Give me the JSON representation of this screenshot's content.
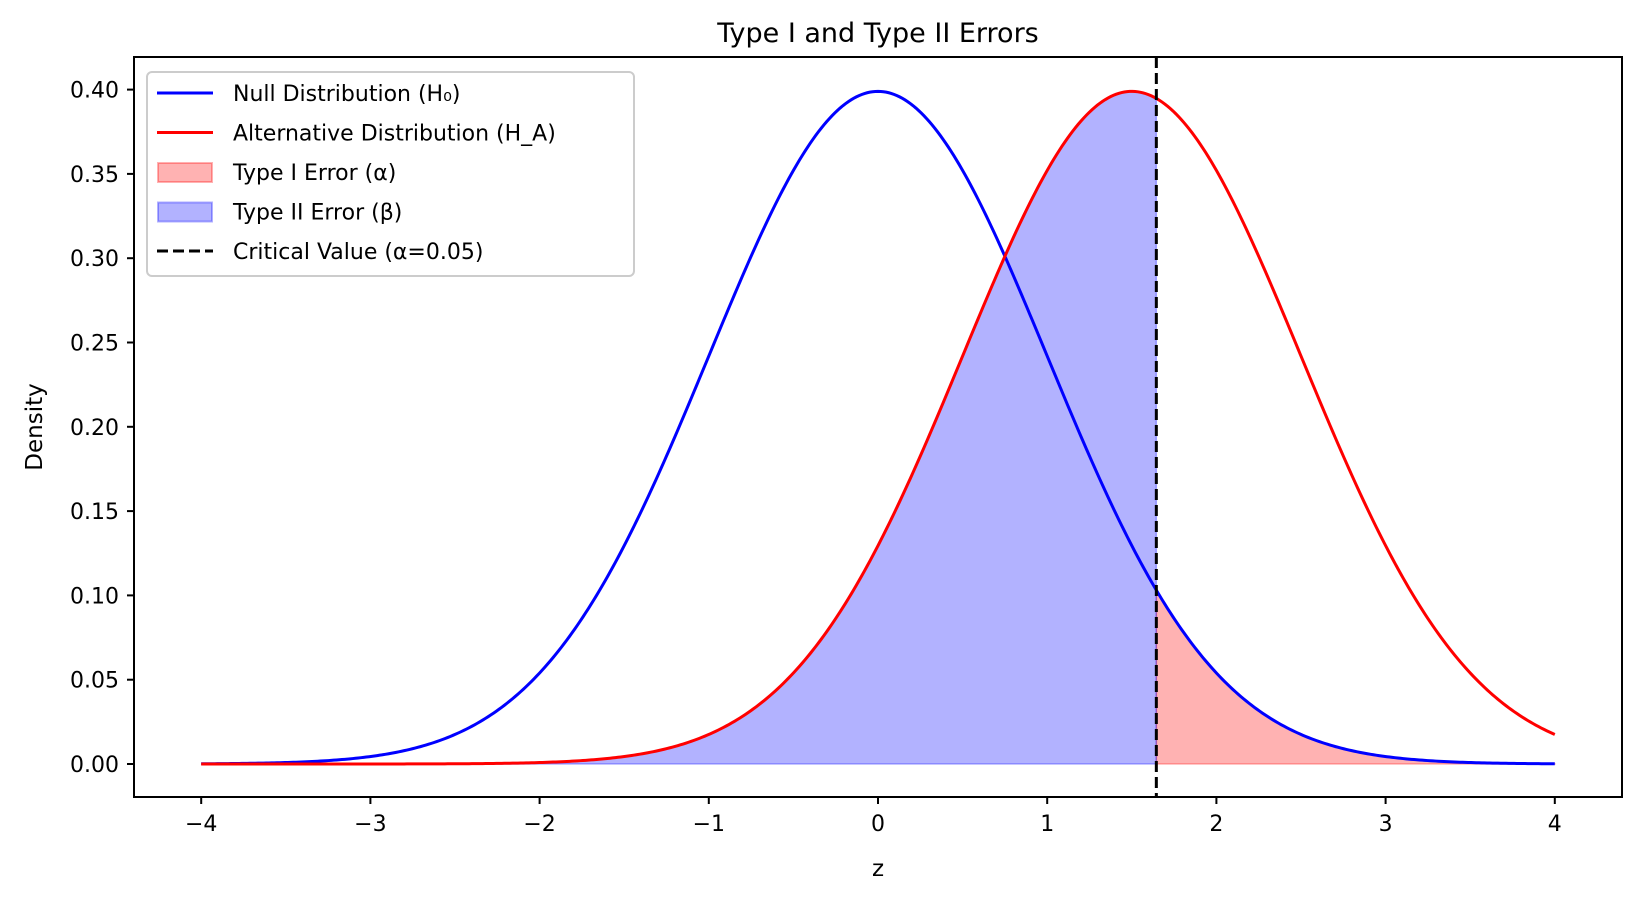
{
  "chart_data": {
    "type": "line",
    "title": "Type I and Type II Errors",
    "xlabel": "z",
    "ylabel": "Density",
    "xlim": [
      -4.4,
      4.4
    ],
    "ylim": [
      -0.02,
      0.42
    ],
    "x_ticks": [
      -4,
      -3,
      -2,
      -1,
      0,
      1,
      2,
      3,
      4
    ],
    "x_tick_labels": [
      "−4",
      "−3",
      "−2",
      "−1",
      "0",
      "1",
      "2",
      "3",
      "4"
    ],
    "y_ticks": [
      0.0,
      0.05,
      0.1,
      0.15,
      0.2,
      0.25,
      0.3,
      0.35,
      0.4
    ],
    "y_tick_labels": [
      "0.00",
      "0.05",
      "0.10",
      "0.15",
      "0.20",
      "0.25",
      "0.30",
      "0.35",
      "0.40"
    ],
    "grid": false,
    "legend_position": "upper left",
    "x_range": [
      -4,
      4
    ],
    "series": [
      {
        "name": "Null Distribution (H₀)",
        "kind": "normal_pdf",
        "mean": 0,
        "sd": 1,
        "color": "#0000ff",
        "sample_points": {
          "x": [
            -4,
            -3,
            -2,
            -1,
            0,
            1,
            1.645,
            2,
            3,
            4
          ],
          "y": [
            0.0001,
            0.0044,
            0.054,
            0.242,
            0.399,
            0.242,
            0.103,
            0.054,
            0.0044,
            0.0001
          ]
        }
      },
      {
        "name": "Alternative Distribution (H_A)",
        "kind": "normal_pdf",
        "mean": 1.5,
        "sd": 1,
        "color": "#ff0000",
        "sample_points": {
          "x": [
            -4,
            -2,
            -1,
            0,
            1,
            1.5,
            1.645,
            2,
            3,
            4
          ],
          "y": [
            0.0,
            0.0009,
            0.0175,
            0.1295,
            0.352,
            0.399,
            0.395,
            0.352,
            0.1295,
            0.0175
          ]
        }
      }
    ],
    "fills": [
      {
        "name": "Type I Error (α)",
        "under": "Null Distribution (H₀)",
        "from": 1.645,
        "to": 4,
        "color": "#ff0000",
        "alpha": 0.3
      },
      {
        "name": "Type II Error (β)",
        "under": "Alternative Distribution (H_A)",
        "from": -4,
        "to": 1.645,
        "color": "#0000ff",
        "alpha": 0.3
      }
    ],
    "vlines": [
      {
        "name": "Critical Value (α=0.05)",
        "x": 1.645,
        "style": "dashed",
        "color": "#000000"
      }
    ],
    "legend": [
      {
        "label": "Null Distribution (H₀)",
        "type": "line",
        "color": "#0000ff"
      },
      {
        "label": "Alternative Distribution (H_A)",
        "type": "line",
        "color": "#ff0000"
      },
      {
        "label": "Type I Error (α)",
        "type": "patch",
        "color": "#ff0000"
      },
      {
        "label": "Type II Error (β)",
        "type": "patch",
        "color": "#0000ff"
      },
      {
        "label": "Critical Value (α=0.05)",
        "type": "dashed",
        "color": "#000000"
      }
    ]
  }
}
